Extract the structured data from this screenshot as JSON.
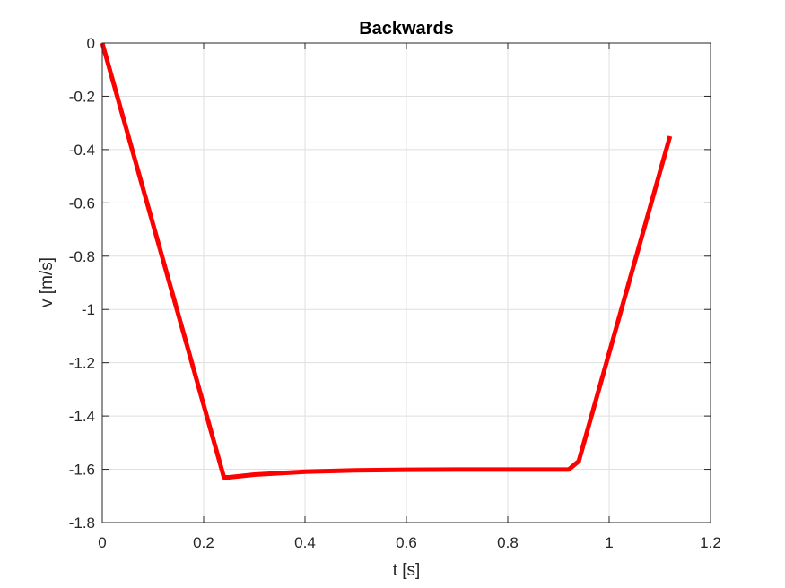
{
  "colors": {
    "background": "#ffffff",
    "axis": "#262626",
    "grid": "#dfdfdf",
    "series": "#ff0000"
  },
  "chart_data": {
    "type": "line",
    "title": "Backwards",
    "xlabel": "t [s]",
    "ylabel": "v [m/s]",
    "xlim": [
      0,
      1.2
    ],
    "ylim": [
      -1.8,
      0
    ],
    "xticks": [
      0,
      0.2,
      0.4,
      0.6,
      0.8,
      1,
      1.2
    ],
    "xtick_labels": [
      "0",
      "0.2",
      "0.4",
      "0.6",
      "0.8",
      "1",
      "1.2"
    ],
    "yticks": [
      0,
      -0.2,
      -0.4,
      -0.6,
      -0.8,
      -1,
      -1.2,
      -1.4,
      -1.6,
      -1.8
    ],
    "ytick_labels": [
      "0",
      "-0.2",
      "-0.4",
      "-0.6",
      "-0.8",
      "-1",
      "-1.2",
      "-1.4",
      "-1.6",
      "-1.8"
    ],
    "grid": true,
    "box": true,
    "series": [
      {
        "color": "#ff0000",
        "x": [
          0,
          0.24,
          0.25,
          0.3,
          0.4,
          0.5,
          0.6,
          0.7,
          0.8,
          0.92,
          0.94,
          1.12
        ],
        "y": [
          0,
          -1.63,
          -1.63,
          -1.62,
          -1.609,
          -1.604,
          -1.602,
          -1.601,
          -1.601,
          -1.601,
          -1.57,
          -0.35
        ]
      }
    ]
  }
}
